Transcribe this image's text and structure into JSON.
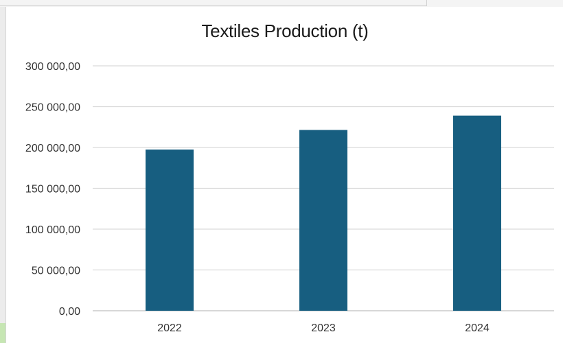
{
  "chart_data": {
    "type": "bar",
    "title": "Textiles Production (t)",
    "categories": [
      "2022",
      "2023",
      "2024"
    ],
    "values": [
      197500,
      221500,
      239000
    ],
    "ylim": [
      0,
      300000
    ],
    "yticks": [
      "0,00",
      "50 000,00",
      "100 000,00",
      "150 000,00",
      "200 000,00",
      "250 000,00",
      "300 000,00"
    ],
    "grid": true,
    "legend": "none",
    "bar_color": "#175e80",
    "grid_color": "#d9d9d9"
  }
}
